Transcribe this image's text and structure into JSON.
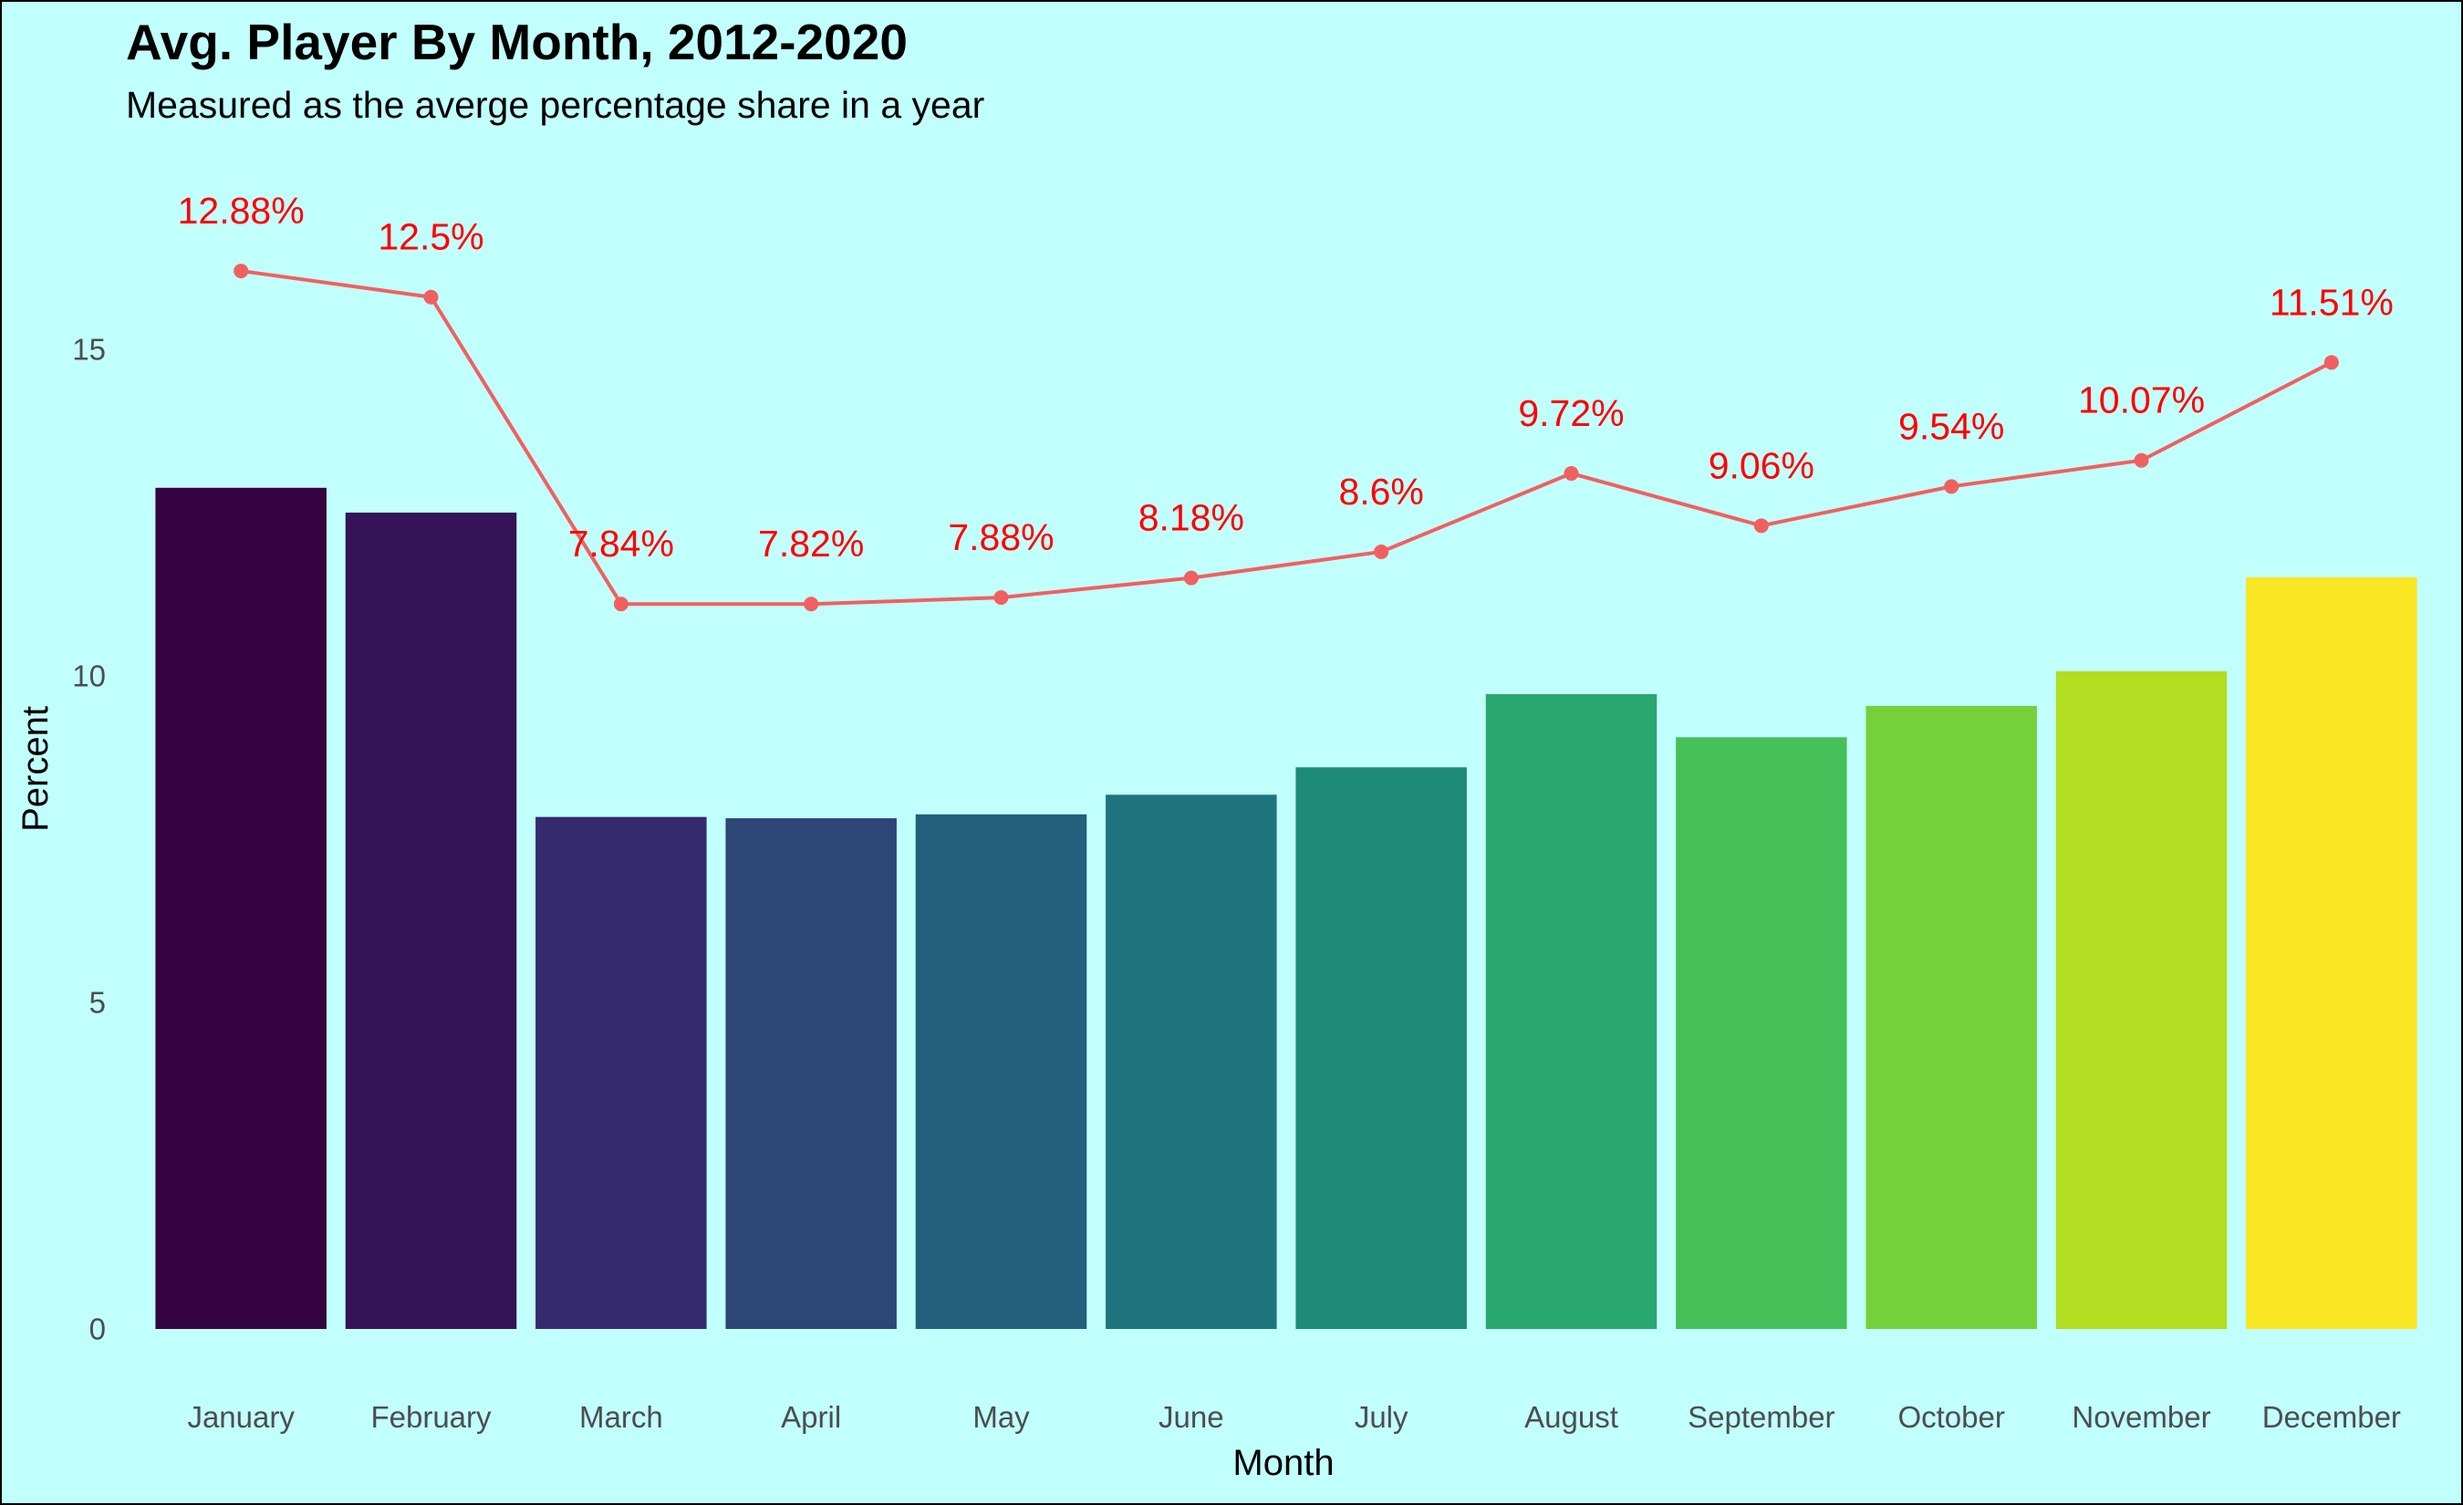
{
  "chart_data": {
    "type": "bar",
    "title": "Avg. Player By Month, 2012-2020",
    "subtitle": "Measured as the averge percentage share in a year",
    "xlabel": "Month",
    "ylabel": "Percent",
    "categories": [
      "January",
      "February",
      "March",
      "April",
      "May",
      "June",
      "July",
      "August",
      "September",
      "October",
      "November",
      "December"
    ],
    "values": [
      12.88,
      12.5,
      7.84,
      7.82,
      7.88,
      8.18,
      8.6,
      9.72,
      9.06,
      9.54,
      10.07,
      11.51
    ],
    "bar_colors": [
      "#350340",
      "#361256",
      "#352A6D",
      "#2D4676",
      "#245F7D",
      "#1F737C",
      "#1E8A79",
      "#2AA66F",
      "#47BF58",
      "#75D03A",
      "#B2DD20",
      "#FAE622"
    ],
    "line_series": {
      "values": [
        16.2,
        15.8,
        11.1,
        11.1,
        11.2,
        11.5,
        11.9,
        13.1,
        12.3,
        12.9,
        13.3,
        14.8
      ],
      "labels": [
        "12.88%",
        "12.5%",
        "7.84%",
        "7.82%",
        "7.88%",
        "8.18%",
        "8.6%",
        "9.72%",
        "9.06%",
        "9.54%",
        "10.07%",
        "11.51%"
      ],
      "color": "#F06060",
      "label_color": "#FF0000"
    },
    "ylim": [
      0,
      18.05
    ],
    "yticks": [
      0,
      5,
      10,
      15
    ],
    "grid": false,
    "legend": "none",
    "background": "#C1FFFD"
  }
}
